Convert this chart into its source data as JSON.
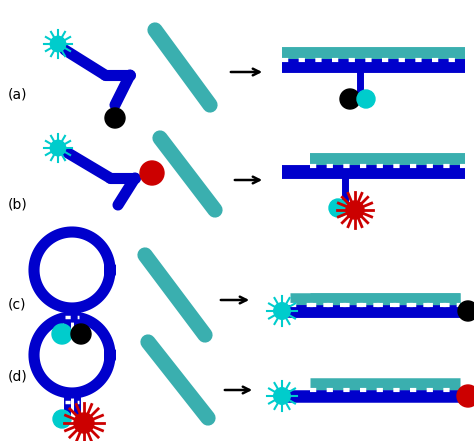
{
  "bg_color": "#ffffff",
  "teal_strand": "#3aafaf",
  "blue_color": "#0000cc",
  "cyan_color": "#00cccc",
  "black_color": "#000000",
  "red_color": "#cc0000",
  "label_fontsize": 10,
  "panels": [
    "(a)",
    "(b)",
    "(c)",
    "(d)"
  ]
}
